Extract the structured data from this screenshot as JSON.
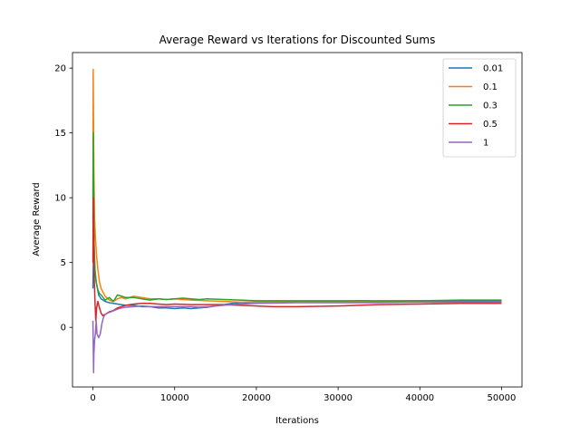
{
  "chart_data": {
    "type": "line",
    "title": "Average Reward vs Iterations for Discounted Sums",
    "xlabel": "Iterations",
    "ylabel": "Average Reward",
    "xlim": [
      -2500,
      52500
    ],
    "ylim": [
      -4.6,
      21.2
    ],
    "xticks": [
      0,
      10000,
      20000,
      30000,
      40000,
      50000
    ],
    "yticks": [
      0,
      5,
      10,
      15,
      20
    ],
    "grid": false,
    "legend": "top-right",
    "series": [
      {
        "name": "0.01",
        "color": "#1f77b4",
        "points": [
          [
            0,
            3.0
          ],
          [
            80,
            6.0
          ],
          [
            200,
            4.5
          ],
          [
            400,
            3.5
          ],
          [
            700,
            2.5
          ],
          [
            1000,
            2.2
          ],
          [
            1500,
            2.0
          ],
          [
            2000,
            1.9
          ],
          [
            3000,
            1.8
          ],
          [
            4000,
            1.7
          ],
          [
            5000,
            1.7
          ],
          [
            6000,
            1.6
          ],
          [
            7000,
            1.6
          ],
          [
            8000,
            1.5
          ],
          [
            9000,
            1.5
          ],
          [
            10000,
            1.45
          ],
          [
            11000,
            1.5
          ],
          [
            12000,
            1.45
          ],
          [
            13000,
            1.5
          ],
          [
            14000,
            1.55
          ],
          [
            15000,
            1.65
          ],
          [
            16000,
            1.75
          ],
          [
            17000,
            1.85
          ],
          [
            18000,
            1.9
          ],
          [
            20000,
            1.95
          ],
          [
            25000,
            2.0
          ],
          [
            30000,
            2.0
          ],
          [
            33000,
            2.05
          ],
          [
            35000,
            2.0
          ],
          [
            40000,
            2.05
          ],
          [
            45000,
            2.05
          ],
          [
            50000,
            2.05
          ]
        ]
      },
      {
        "name": "0.1",
        "color": "#ff7f0e",
        "points": [
          [
            0,
            10.0
          ],
          [
            30,
            19.9
          ],
          [
            60,
            17.0
          ],
          [
            120,
            12.0
          ],
          [
            200,
            8.5
          ],
          [
            300,
            7.0
          ],
          [
            450,
            5.5
          ],
          [
            600,
            4.5
          ],
          [
            800,
            3.5
          ],
          [
            1000,
            3.0
          ],
          [
            1500,
            2.4
          ],
          [
            2000,
            2.1
          ],
          [
            2500,
            2.0
          ],
          [
            3000,
            2.2
          ],
          [
            3500,
            2.3
          ],
          [
            4000,
            2.2
          ],
          [
            5000,
            2.4
          ],
          [
            6000,
            2.3
          ],
          [
            7000,
            2.2
          ],
          [
            8000,
            2.2
          ],
          [
            9000,
            2.15
          ],
          [
            10000,
            2.2
          ],
          [
            12000,
            2.1
          ],
          [
            14000,
            2.05
          ],
          [
            16000,
            2.0
          ],
          [
            18000,
            1.95
          ],
          [
            20000,
            1.95
          ],
          [
            25000,
            1.95
          ],
          [
            30000,
            1.95
          ],
          [
            35000,
            1.95
          ],
          [
            40000,
            1.95
          ],
          [
            45000,
            1.95
          ],
          [
            50000,
            1.95
          ]
        ]
      },
      {
        "name": "0.3",
        "color": "#2ca02c",
        "points": [
          [
            0,
            8.0
          ],
          [
            40,
            15.0
          ],
          [
            80,
            11.0
          ],
          [
            150,
            6.5
          ],
          [
            250,
            4.5
          ],
          [
            400,
            3.5
          ],
          [
            600,
            2.9
          ],
          [
            800,
            2.6
          ],
          [
            1000,
            2.5
          ],
          [
            1500,
            2.1
          ],
          [
            2000,
            2.3
          ],
          [
            2500,
            2.0
          ],
          [
            3000,
            2.5
          ],
          [
            3500,
            2.4
          ],
          [
            4000,
            2.3
          ],
          [
            5000,
            2.3
          ],
          [
            6000,
            2.2
          ],
          [
            7000,
            2.1
          ],
          [
            8000,
            2.2
          ],
          [
            9000,
            2.15
          ],
          [
            10000,
            2.2
          ],
          [
            11000,
            2.25
          ],
          [
            12000,
            2.2
          ],
          [
            13000,
            2.15
          ],
          [
            14000,
            2.2
          ],
          [
            16000,
            2.15
          ],
          [
            18000,
            2.1
          ],
          [
            20000,
            2.05
          ],
          [
            25000,
            2.05
          ],
          [
            30000,
            2.05
          ],
          [
            35000,
            2.05
          ],
          [
            40000,
            2.05
          ],
          [
            45000,
            2.1
          ],
          [
            50000,
            2.1
          ]
        ]
      },
      {
        "name": "0.5",
        "color": "#d62728",
        "points": [
          [
            0,
            5.0
          ],
          [
            40,
            10.0
          ],
          [
            80,
            7.0
          ],
          [
            150,
            4.0
          ],
          [
            250,
            2.0
          ],
          [
            350,
            0.5
          ],
          [
            450,
            1.5
          ],
          [
            600,
            2.0
          ],
          [
            800,
            1.5
          ],
          [
            1000,
            1.1
          ],
          [
            1200,
            0.9
          ],
          [
            1500,
            1.0
          ],
          [
            2000,
            1.2
          ],
          [
            2500,
            1.3
          ],
          [
            3000,
            1.5
          ],
          [
            3500,
            1.6
          ],
          [
            4000,
            1.7
          ],
          [
            5000,
            1.8
          ],
          [
            6000,
            1.85
          ],
          [
            7000,
            1.85
          ],
          [
            8000,
            1.8
          ],
          [
            9000,
            1.75
          ],
          [
            10000,
            1.8
          ],
          [
            12000,
            1.75
          ],
          [
            14000,
            1.75
          ],
          [
            16000,
            1.75
          ],
          [
            18000,
            1.7
          ],
          [
            20000,
            1.65
          ],
          [
            22000,
            1.6
          ],
          [
            25000,
            1.6
          ],
          [
            30000,
            1.65
          ],
          [
            35000,
            1.75
          ],
          [
            40000,
            1.8
          ],
          [
            45000,
            1.85
          ],
          [
            50000,
            1.85
          ]
        ]
      },
      {
        "name": "1",
        "color": "#9467bd",
        "points": [
          [
            0,
            0.5
          ],
          [
            40,
            -1.5
          ],
          [
            80,
            -3.5
          ],
          [
            120,
            -2.0
          ],
          [
            200,
            -1.0
          ],
          [
            300,
            -0.5
          ],
          [
            400,
            0.5
          ],
          [
            500,
            -0.5
          ],
          [
            700,
            -0.8
          ],
          [
            900,
            -0.5
          ],
          [
            1100,
            0.3
          ],
          [
            1300,
            0.8
          ],
          [
            1500,
            1.0
          ],
          [
            1800,
            1.1
          ],
          [
            2200,
            1.2
          ],
          [
            2600,
            1.3
          ],
          [
            3000,
            1.4
          ],
          [
            3500,
            1.5
          ],
          [
            4000,
            1.55
          ],
          [
            5000,
            1.6
          ],
          [
            6000,
            1.65
          ],
          [
            7000,
            1.6
          ],
          [
            8000,
            1.6
          ],
          [
            9000,
            1.6
          ],
          [
            10000,
            1.6
          ],
          [
            11000,
            1.6
          ],
          [
            12000,
            1.6
          ],
          [
            13000,
            1.55
          ],
          [
            14000,
            1.6
          ],
          [
            15000,
            1.65
          ],
          [
            16000,
            1.7
          ],
          [
            17000,
            1.75
          ],
          [
            18000,
            1.8
          ],
          [
            20000,
            1.85
          ],
          [
            25000,
            1.9
          ],
          [
            30000,
            1.9
          ],
          [
            35000,
            1.9
          ],
          [
            40000,
            1.95
          ],
          [
            45000,
            1.95
          ],
          [
            50000,
            1.95
          ]
        ]
      }
    ]
  }
}
